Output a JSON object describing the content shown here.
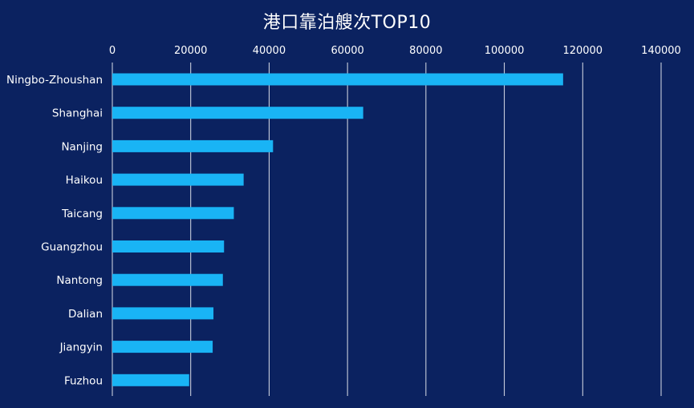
{
  "chart_data": {
    "type": "bar",
    "orientation": "horizontal",
    "title": "港口靠泊艘次TOP10",
    "categories": [
      "Ningbo-Zhoushan",
      "Shanghai",
      "Nanjing",
      "Haikou",
      "Taicang",
      "Guangzhou",
      "Nantong",
      "Dalian",
      "Jiangyin",
      "Fuzhou"
    ],
    "values": [
      115000,
      64000,
      41000,
      33500,
      31000,
      28500,
      28200,
      25800,
      25600,
      19600
    ],
    "xlim": [
      0,
      140000
    ],
    "xticks": [
      0,
      20000,
      40000,
      60000,
      80000,
      100000,
      120000,
      140000
    ],
    "tick_labels": [
      "0",
      "20000",
      "40000",
      "60000",
      "80000",
      "100000",
      "120000",
      "140000"
    ],
    "axis_position": "top",
    "grid": true,
    "legend": "none",
    "colors": {
      "background": "#0b2260",
      "bar": "#19b4f5",
      "gridline": "#ffffff",
      "text": "#ffffff"
    }
  }
}
